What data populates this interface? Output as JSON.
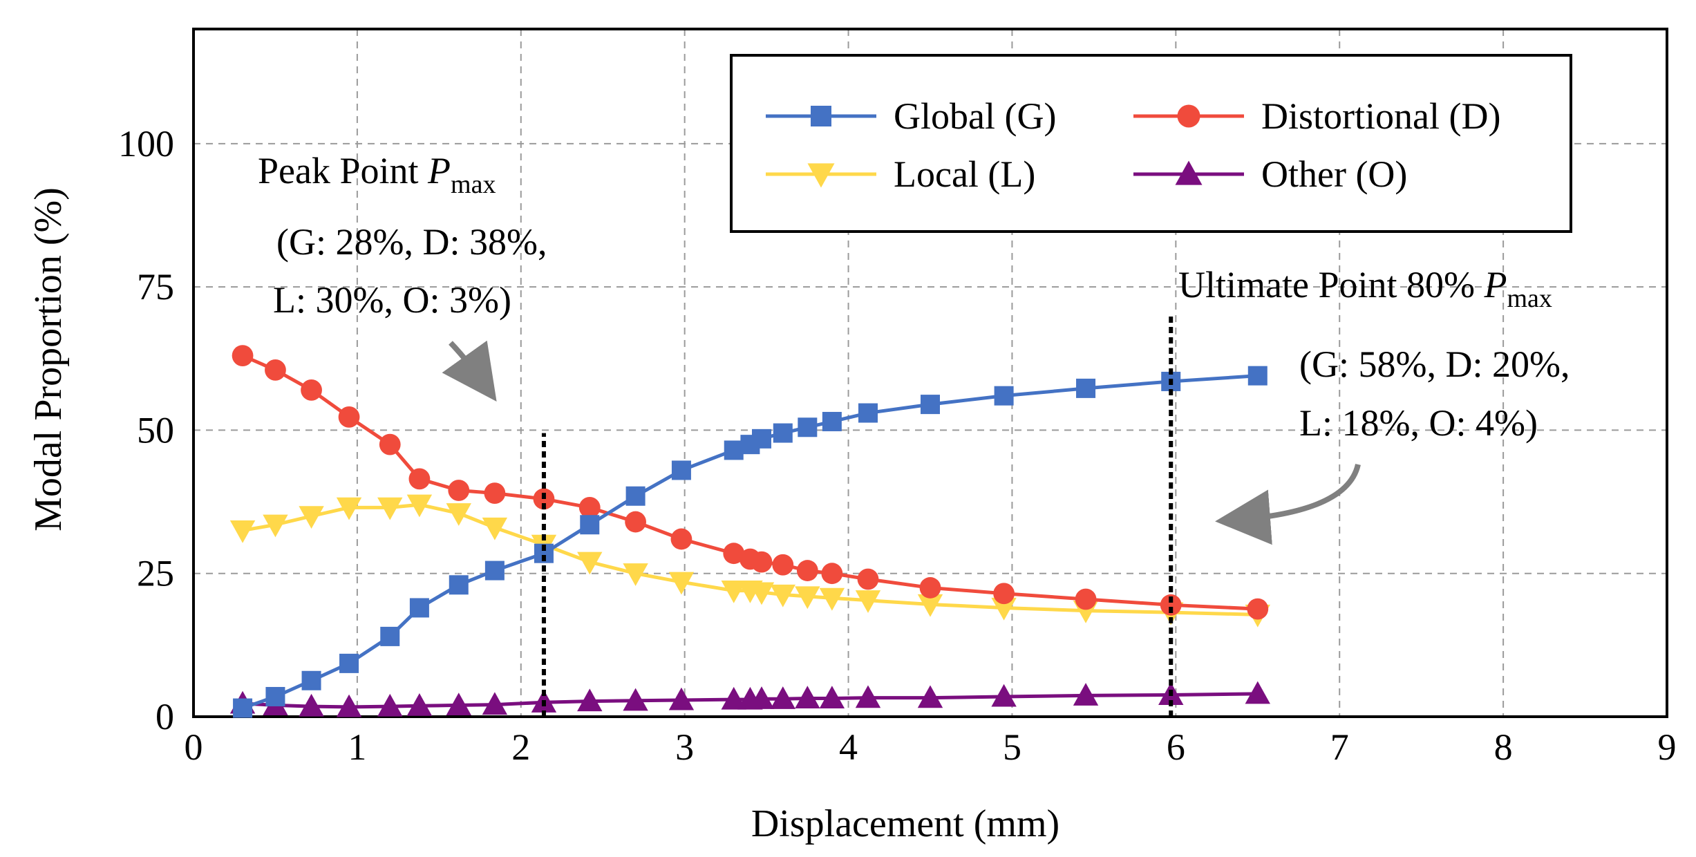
{
  "chart_data": {
    "type": "line",
    "xlabel": "Displacement (mm)",
    "ylabel": "Modal Proportion (%)",
    "xlim": [
      0,
      9
    ],
    "ylim": [
      0,
      120
    ],
    "xticks": [
      0,
      1,
      2,
      3,
      4,
      5,
      6,
      7,
      8,
      9
    ],
    "yticks": [
      0,
      25,
      50,
      75,
      100
    ],
    "grid": true,
    "legend_position": "top-right",
    "series": [
      {
        "name": "Global (G)",
        "key": "G",
        "color": "#4472C4",
        "marker": "square",
        "x": [
          0.3,
          0.5,
          0.72,
          0.95,
          1.2,
          1.38,
          1.62,
          1.84,
          2.14,
          2.42,
          2.7,
          2.98,
          3.3,
          3.4,
          3.47,
          3.6,
          3.75,
          3.9,
          4.12,
          4.5,
          4.95,
          5.45,
          5.97,
          6.5
        ],
        "y": [
          1.5,
          3.5,
          6.3,
          9.3,
          14,
          19,
          23,
          25.5,
          28.5,
          33.5,
          38.5,
          43,
          46.5,
          47.5,
          48.5,
          49.5,
          50.5,
          51.5,
          53,
          54.5,
          56,
          57.3,
          58.5,
          59.5
        ]
      },
      {
        "name": "Distortional (D)",
        "key": "D",
        "color": "#F04B3C",
        "marker": "circle",
        "x": [
          0.3,
          0.5,
          0.72,
          0.95,
          1.2,
          1.38,
          1.62,
          1.84,
          2.14,
          2.42,
          2.7,
          2.98,
          3.3,
          3.4,
          3.47,
          3.6,
          3.75,
          3.9,
          4.12,
          4.5,
          4.95,
          5.45,
          5.97,
          6.5
        ],
        "y": [
          63,
          60.5,
          57,
          52.3,
          47.5,
          41.5,
          39.5,
          39,
          38,
          36.5,
          34,
          31,
          28.5,
          27.5,
          27,
          26.5,
          25.5,
          25,
          24,
          22.5,
          21.5,
          20.5,
          19.5,
          18.8
        ]
      },
      {
        "name": "Local (L)",
        "key": "L",
        "color": "#FFD84A",
        "marker": "triangle-down",
        "x": [
          0.3,
          0.5,
          0.72,
          0.95,
          1.2,
          1.38,
          1.62,
          1.84,
          2.14,
          2.42,
          2.7,
          2.98,
          3.3,
          3.4,
          3.47,
          3.6,
          3.75,
          3.9,
          4.12,
          4.5,
          4.95,
          5.45,
          5.97,
          6.5
        ],
        "y": [
          32.5,
          33.5,
          35,
          36.5,
          36.5,
          37,
          35.5,
          33,
          30,
          27,
          25,
          23.5,
          22,
          22,
          21.7,
          21.3,
          21,
          20.7,
          20.3,
          19.6,
          19,
          18.5,
          18.2,
          17.8
        ]
      },
      {
        "name": "Other (O)",
        "key": "O",
        "color": "#7A0E7F",
        "marker": "triangle-up",
        "x": [
          0.3,
          0.5,
          0.72,
          0.95,
          1.2,
          1.38,
          1.62,
          1.84,
          2.14,
          2.42,
          2.7,
          2.98,
          3.3,
          3.4,
          3.47,
          3.6,
          3.75,
          3.9,
          4.12,
          4.5,
          4.95,
          5.45,
          5.97,
          6.5
        ],
        "y": [
          2.3,
          2,
          1.8,
          1.7,
          1.8,
          1.9,
          2,
          2.1,
          2.5,
          2.7,
          2.8,
          2.9,
          3,
          3,
          3.1,
          3.1,
          3.2,
          3.2,
          3.3,
          3.3,
          3.5,
          3.7,
          3.8,
          4
        ]
      }
    ],
    "markers": [
      {
        "name": "peak-point-line",
        "x": 2.14,
        "y_top": 49.5
      },
      {
        "name": "ultimate-point-line",
        "x": 5.97,
        "y_top": 70
      }
    ],
    "annotations": {
      "peak": {
        "title": "Peak Point ",
        "symbol": "P",
        "subscript": "max",
        "line1": "(G: 28%, D: 38%,",
        "line2": "L: 30%, O: 3%)"
      },
      "ultimate": {
        "title": "Ultimate Point 80% ",
        "symbol": "P",
        "subscript": "max",
        "line1": "(G: 58%, D: 20%,",
        "line2": "L: 18%, O: 4%)"
      }
    }
  }
}
